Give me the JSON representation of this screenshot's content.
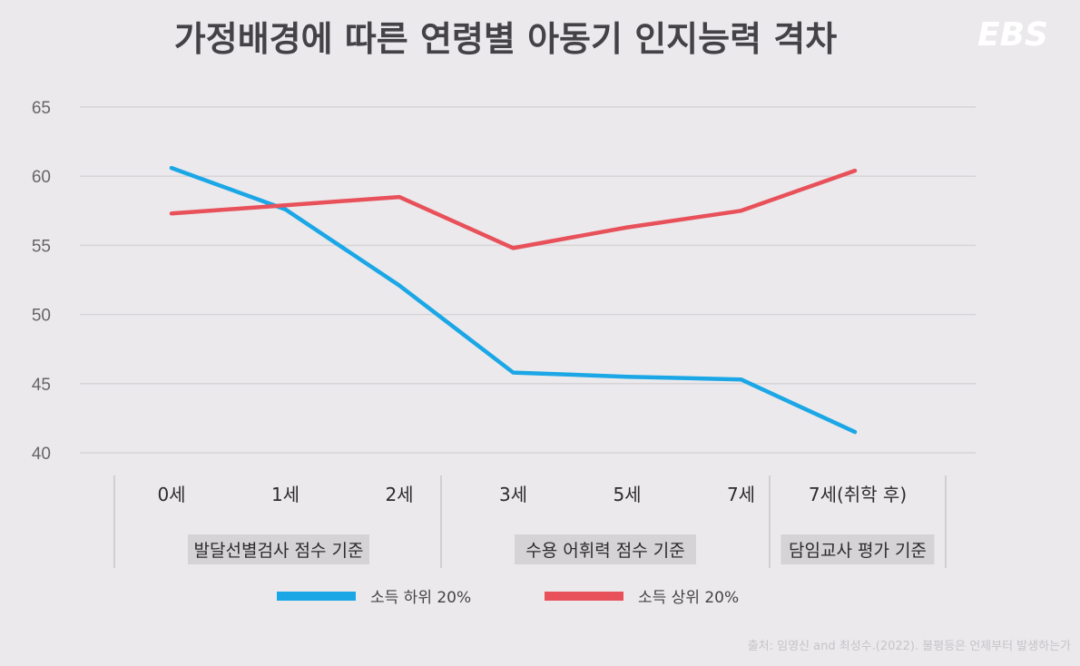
{
  "title": "가정배경에 따른 연령별 아동기 인지능력 격차",
  "logo": "EBS",
  "source": "출처: 임영신 and 최성수.(2022). 불평등은 언제부터 발생하는가",
  "colors": {
    "background": "#ebe9ec",
    "low_income": "#1ba7e6",
    "high_income": "#e8515a",
    "grid": "#d6d4d7",
    "label_bg": "#d5d3d5"
  },
  "chart_data": {
    "type": "line",
    "title": "가정배경에 따른 연령별 아동기 인지능력 격차",
    "categories": [
      "0세",
      "1세",
      "2세",
      "3세",
      "5세",
      "7세",
      "7세(취학 후)"
    ],
    "groups": [
      {
        "label": "발달선별검사 점수 기준",
        "categories": [
          "0세",
          "1세",
          "2세"
        ]
      },
      {
        "label": "수용 어휘력 점수 기준",
        "categories": [
          "3세",
          "5세",
          "7세"
        ]
      },
      {
        "label": "담임교사 평가 기준",
        "categories": [
          "7세(취학 후)"
        ]
      }
    ],
    "series": [
      {
        "name": "소득 하위 20%",
        "color": "#1ba7e6",
        "values": [
          60.6,
          57.6,
          52.1,
          45.8,
          45.5,
          45.3,
          41.5
        ]
      },
      {
        "name": "소득 상위 20%",
        "color": "#e8515a",
        "values": [
          57.3,
          57.9,
          58.5,
          54.8,
          56.3,
          57.5,
          60.4
        ]
      }
    ],
    "ylim": [
      40,
      65
    ],
    "yticks": [
      40,
      45,
      50,
      55,
      60,
      65
    ],
    "grid": true,
    "legend_position": "bottom"
  }
}
